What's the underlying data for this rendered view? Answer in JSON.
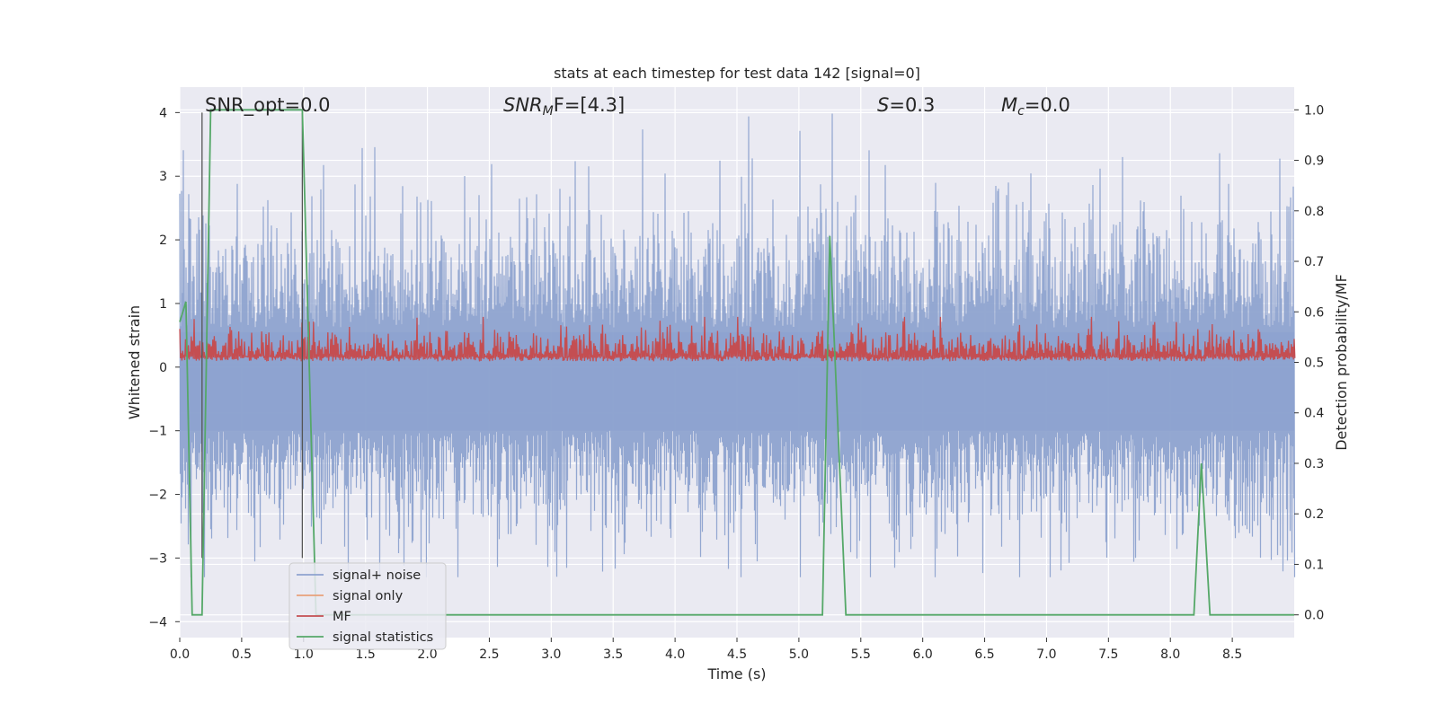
{
  "chart_data": {
    "type": "line",
    "title": "stats at each timestep for test data 142 [signal=0]",
    "xlabel": "Time (s)",
    "ylabel": "Whitened strain",
    "ylabel_right": "Detection probability/MF",
    "xlim": [
      0.0,
      9.0
    ],
    "ylim": [
      -4.25,
      4.4
    ],
    "ylim_right": [
      -0.045,
      1.045
    ],
    "x_ticks": [
      "0.0",
      "0.5",
      "1.0",
      "1.5",
      "2.0",
      "2.5",
      "3.0",
      "3.5",
      "4.0",
      "4.5",
      "5.0",
      "5.5",
      "6.0",
      "6.5",
      "7.0",
      "7.5",
      "8.0",
      "8.5"
    ],
    "y_ticks": [
      "4",
      "3",
      "2",
      "1",
      "0",
      "−1",
      "−2",
      "−3",
      "−4"
    ],
    "y_ticks_right": [
      "1.0",
      "0.9",
      "0.8",
      "0.7",
      "0.6",
      "0.5",
      "0.4",
      "0.3",
      "0.2",
      "0.1",
      "0.0"
    ],
    "grid": true,
    "legend_position": "lower-left",
    "annotations": {
      "snr_opt": "SNR_opt=0.0",
      "snr_mf_base": "SNR",
      "snr_mf_sub": "M",
      "snr_mf_rest": "F=[4.3]",
      "s_italic": "S",
      "s_rest": "=0.3",
      "mc_italic": "M",
      "mc_sub": "c",
      "mc_rest": "=0.0"
    },
    "vertical_markers_x": [
      0.18,
      0.99
    ],
    "series": [
      {
        "name": "signal+ noise",
        "color": "#8ea3cf",
        "description_type": "noise",
        "amplitude_envelope": [
          -3.3,
          4.0
        ]
      },
      {
        "name": "signal only",
        "color": "#e8a07a",
        "values": "zero"
      },
      {
        "name": "MF",
        "color": "#c44e52",
        "axis": "right",
        "range": [
          0.5,
          0.6
        ]
      },
      {
        "name": "signal statistics",
        "color": "#55a868",
        "axis": "right",
        "x": [
          0.0,
          0.05,
          0.1,
          0.12,
          0.18,
          0.25,
          0.99,
          1.1,
          1.2,
          5.19,
          5.25,
          5.38,
          8.19,
          8.25,
          8.32,
          9.0
        ],
        "y": [
          0.58,
          0.62,
          0.0,
          0.0,
          0.0,
          1.0,
          1.0,
          0.0,
          0.0,
          0.0,
          0.75,
          0.0,
          0.0,
          0.3,
          0.0,
          0.0
        ]
      }
    ]
  },
  "colors": {
    "plot_bg": "#eaeaf2",
    "grid": "#ffffff",
    "noise": "#8ea3cf",
    "signal_only": "#e8a07a",
    "mf": "#c44e52",
    "stats": "#55a868",
    "marker": "#555555"
  }
}
